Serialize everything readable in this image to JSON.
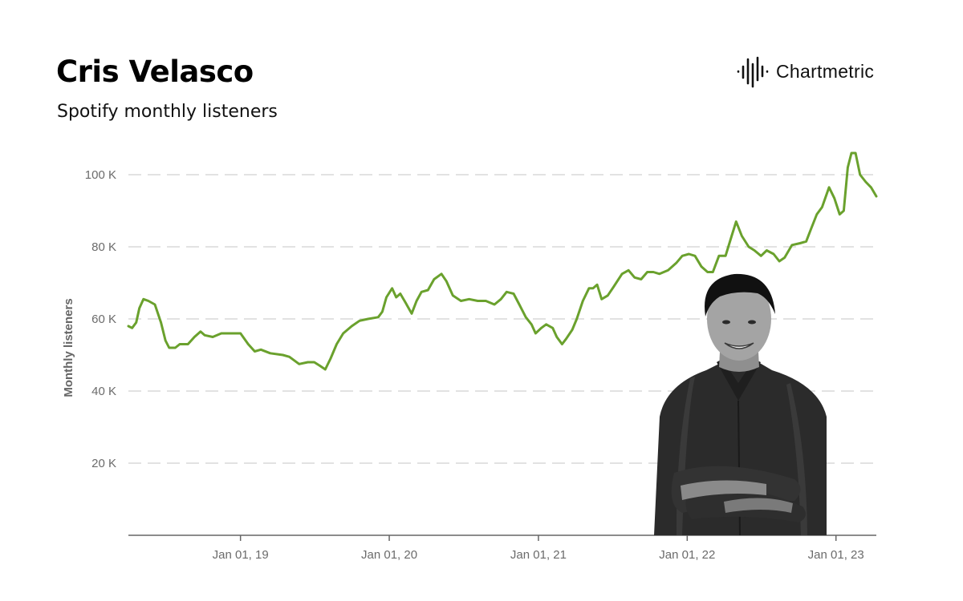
{
  "header": {
    "title": "Cris Velasco",
    "subtitle": "Spotify monthly listeners",
    "brand": "Chartmetric",
    "brand_icon": "soundwave-icon"
  },
  "chart_data": {
    "type": "line",
    "title": "Cris Velasco",
    "subtitle": "Spotify monthly listeners",
    "xlabel": "",
    "ylabel": "Monthly listeners",
    "ylim": [
      0,
      110000
    ],
    "xlim": [
      "2018-04-01",
      "2023-04-10"
    ],
    "y_ticks": [
      20000,
      40000,
      60000,
      80000,
      100000
    ],
    "y_tick_labels": [
      "20 K",
      "40 K",
      "60 K",
      "80 K",
      "100 K"
    ],
    "x_ticks": [
      "2019-01-01",
      "2020-01-01",
      "2021-01-01",
      "2022-01-01",
      "2023-01-01"
    ],
    "x_tick_labels": [
      "Jan 01, 19",
      "Jan 01, 20",
      "Jan 01, 21",
      "Jan 01, 22",
      "Jan 01, 23"
    ],
    "grid": "horizontal dashed",
    "legend": "none",
    "line_color": "#6aa12d",
    "series": [
      {
        "points": [
          [
            "2018-04-01",
            58000
          ],
          [
            "2018-04-10",
            57500
          ],
          [
            "2018-04-20",
            59000
          ],
          [
            "2018-04-28",
            63000
          ],
          [
            "2018-05-08",
            65500
          ],
          [
            "2018-05-20",
            65000
          ],
          [
            "2018-06-05",
            64000
          ],
          [
            "2018-06-20",
            59000
          ],
          [
            "2018-07-01",
            54000
          ],
          [
            "2018-07-10",
            52000
          ],
          [
            "2018-07-25",
            52000
          ],
          [
            "2018-08-05",
            53000
          ],
          [
            "2018-08-25",
            53000
          ],
          [
            "2018-09-10",
            55000
          ],
          [
            "2018-09-25",
            56500
          ],
          [
            "2018-10-05",
            55500
          ],
          [
            "2018-10-25",
            55000
          ],
          [
            "2018-11-15",
            56000
          ],
          [
            "2018-12-15",
            56000
          ],
          [
            "2019-01-01",
            56000
          ],
          [
            "2019-01-20",
            53000
          ],
          [
            "2019-02-05",
            51000
          ],
          [
            "2019-02-20",
            51500
          ],
          [
            "2019-03-15",
            50500
          ],
          [
            "2019-04-15",
            50000
          ],
          [
            "2019-05-01",
            49500
          ],
          [
            "2019-05-25",
            47500
          ],
          [
            "2019-06-15",
            48000
          ],
          [
            "2019-07-01",
            48000
          ],
          [
            "2019-07-15",
            47000
          ],
          [
            "2019-07-28",
            46000
          ],
          [
            "2019-08-10",
            49000
          ],
          [
            "2019-08-25",
            53000
          ],
          [
            "2019-09-10",
            56000
          ],
          [
            "2019-10-01",
            58000
          ],
          [
            "2019-10-20",
            59500
          ],
          [
            "2019-11-10",
            60000
          ],
          [
            "2019-12-05",
            60500
          ],
          [
            "2019-12-15",
            62000
          ],
          [
            "2019-12-25",
            66000
          ],
          [
            "2020-01-08",
            68500
          ],
          [
            "2020-01-18",
            66000
          ],
          [
            "2020-01-28",
            67000
          ],
          [
            "2020-02-10",
            64500
          ],
          [
            "2020-02-25",
            61500
          ],
          [
            "2020-03-08",
            65000
          ],
          [
            "2020-03-20",
            67500
          ],
          [
            "2020-04-05",
            68000
          ],
          [
            "2020-04-20",
            71000
          ],
          [
            "2020-05-08",
            72500
          ],
          [
            "2020-05-20",
            70500
          ],
          [
            "2020-06-05",
            66500
          ],
          [
            "2020-06-25",
            65000
          ],
          [
            "2020-07-15",
            65500
          ],
          [
            "2020-08-05",
            65000
          ],
          [
            "2020-08-25",
            65000
          ],
          [
            "2020-09-15",
            64000
          ],
          [
            "2020-10-01",
            65500
          ],
          [
            "2020-10-15",
            67500
          ],
          [
            "2020-11-01",
            67000
          ],
          [
            "2020-11-15",
            64000
          ],
          [
            "2020-12-01",
            60500
          ],
          [
            "2020-12-15",
            58500
          ],
          [
            "2020-12-25",
            56000
          ],
          [
            "2021-01-08",
            57500
          ],
          [
            "2021-01-20",
            58500
          ],
          [
            "2021-02-05",
            57500
          ],
          [
            "2021-02-15",
            55000
          ],
          [
            "2021-02-28",
            53000
          ],
          [
            "2021-03-10",
            54500
          ],
          [
            "2021-03-25",
            57000
          ],
          [
            "2021-04-05",
            60000
          ],
          [
            "2021-04-20",
            65000
          ],
          [
            "2021-05-05",
            68500
          ],
          [
            "2021-05-15",
            68500
          ],
          [
            "2021-05-25",
            69500
          ],
          [
            "2021-06-05",
            65500
          ],
          [
            "2021-06-20",
            66500
          ],
          [
            "2021-07-05",
            69000
          ],
          [
            "2021-07-25",
            72500
          ],
          [
            "2021-08-10",
            73500
          ],
          [
            "2021-08-25",
            71500
          ],
          [
            "2021-09-10",
            71000
          ],
          [
            "2021-09-25",
            73000
          ],
          [
            "2021-10-10",
            73000
          ],
          [
            "2021-10-25",
            72500
          ],
          [
            "2021-11-15",
            73500
          ],
          [
            "2021-12-05",
            75500
          ],
          [
            "2021-12-20",
            77500
          ],
          [
            "2022-01-05",
            78000
          ],
          [
            "2022-01-20",
            77500
          ],
          [
            "2022-02-05",
            74500
          ],
          [
            "2022-02-20",
            73000
          ],
          [
            "2022-03-05",
            73000
          ],
          [
            "2022-03-20",
            77500
          ],
          [
            "2022-04-05",
            77500
          ],
          [
            "2022-04-20",
            83000
          ],
          [
            "2022-05-01",
            87000
          ],
          [
            "2022-05-15",
            83000
          ],
          [
            "2022-06-01",
            80000
          ],
          [
            "2022-06-15",
            79000
          ],
          [
            "2022-07-01",
            77500
          ],
          [
            "2022-07-15",
            79000
          ],
          [
            "2022-08-01",
            78000
          ],
          [
            "2022-08-15",
            76000
          ],
          [
            "2022-08-28",
            77000
          ],
          [
            "2022-09-15",
            80500
          ],
          [
            "2022-10-05",
            81000
          ],
          [
            "2022-10-20",
            81500
          ],
          [
            "2022-11-01",
            85000
          ],
          [
            "2022-11-15",
            89000
          ],
          [
            "2022-11-28",
            91000
          ],
          [
            "2022-12-15",
            96500
          ],
          [
            "2022-12-28",
            93500
          ],
          [
            "2023-01-10",
            89000
          ],
          [
            "2023-01-20",
            90000
          ],
          [
            "2023-01-30",
            102000
          ],
          [
            "2023-02-08",
            106000
          ],
          [
            "2023-02-18",
            106000
          ],
          [
            "2023-03-01",
            100000
          ],
          [
            "2023-03-15",
            98000
          ],
          [
            "2023-03-28",
            96500
          ],
          [
            "2023-04-10",
            94000
          ]
        ]
      }
    ]
  },
  "photo": {
    "description_icon": "artist-photo"
  }
}
